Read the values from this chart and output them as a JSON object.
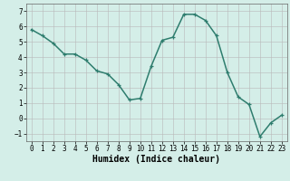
{
  "x": [
    0,
    1,
    2,
    3,
    4,
    5,
    6,
    7,
    8,
    9,
    10,
    11,
    12,
    13,
    14,
    15,
    16,
    17,
    18,
    19,
    20,
    21,
    22,
    23
  ],
  "y": [
    5.8,
    5.4,
    4.9,
    4.2,
    4.2,
    3.8,
    3.1,
    2.9,
    2.2,
    1.2,
    1.3,
    3.4,
    5.1,
    5.3,
    6.8,
    6.8,
    6.4,
    5.4,
    3.0,
    1.4,
    0.9,
    -1.2,
    -0.3,
    0.2
  ],
  "xlabel": "Humidex (Indice chaleur)",
  "ylim": [
    -1.5,
    7.5
  ],
  "xlim": [
    -0.5,
    23.5
  ],
  "line_color": "#2e7d6e",
  "bg_color": "#d4eee8",
  "grid_color": "#b8b8b8",
  "yticks": [
    -1,
    0,
    1,
    2,
    3,
    4,
    5,
    6,
    7
  ],
  "xticks": [
    0,
    1,
    2,
    3,
    4,
    5,
    6,
    7,
    8,
    9,
    10,
    11,
    12,
    13,
    14,
    15,
    16,
    17,
    18,
    19,
    20,
    21,
    22,
    23
  ],
  "tick_fontsize": 5.5,
  "xlabel_fontsize": 7.0,
  "marker": "+",
  "marker_size": 3.5,
  "linewidth": 1.1,
  "font_family": "monospace"
}
